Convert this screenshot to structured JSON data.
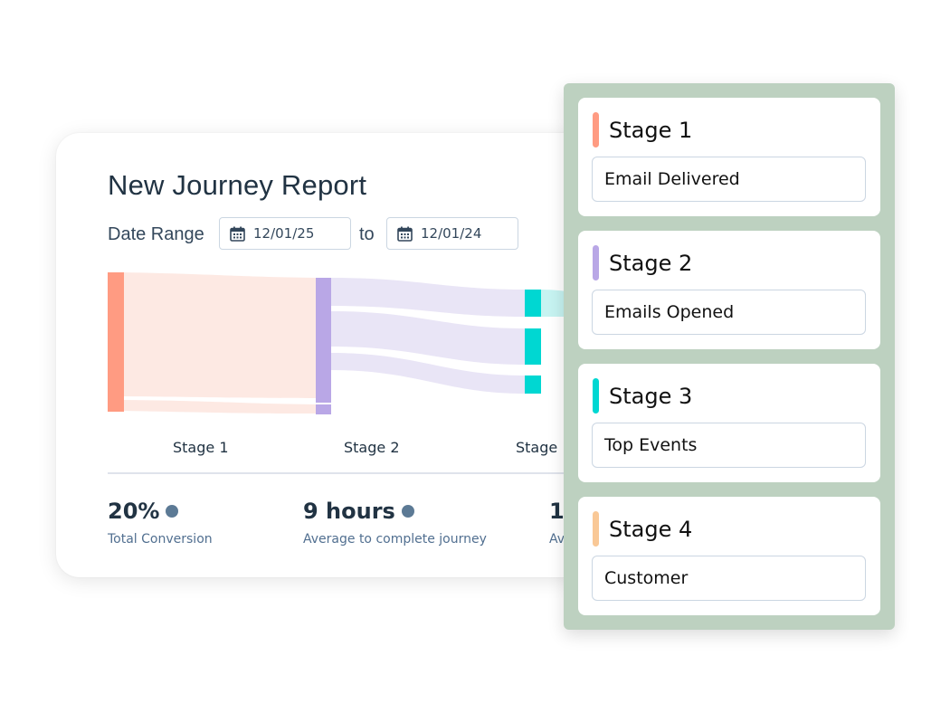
{
  "report": {
    "title": "New Journey Report",
    "date_range_label": "Date Range",
    "start_date": "12/01/25",
    "to_label": "to",
    "end_date": "12/01/24",
    "stage_labels": [
      "Stage 1",
      "Stage 2",
      "Stage"
    ],
    "metrics": [
      {
        "value": "20%",
        "caption": "Total Conversion"
      },
      {
        "value": "9 hours",
        "caption": "Average to complete journey"
      },
      {
        "value": "1.",
        "caption": "Av"
      }
    ]
  },
  "stages_panel": {
    "stages": [
      {
        "title": "Stage 1",
        "value": "Email Delivered",
        "color": "#ff9b82"
      },
      {
        "title": "Stage 2",
        "value": "Emails Opened",
        "color": "#b9a7e6"
      },
      {
        "title": "Stage 3",
        "value": "Top Events",
        "color": "#00d7d2"
      },
      {
        "title": "Stage 4",
        "value": "Customer",
        "color": "#f9c896"
      }
    ]
  },
  "colors": {
    "stage1": "#ff9b82",
    "stage1_flow": "#fde9e3",
    "stage2": "#b9a7e6",
    "stage2_flow": "#e9e5f6",
    "stage3": "#00d7d2",
    "stage3_flow": "#c6f3f1",
    "panel_background": "#bdd1c0",
    "metric_dot": "#5c7a95"
  }
}
